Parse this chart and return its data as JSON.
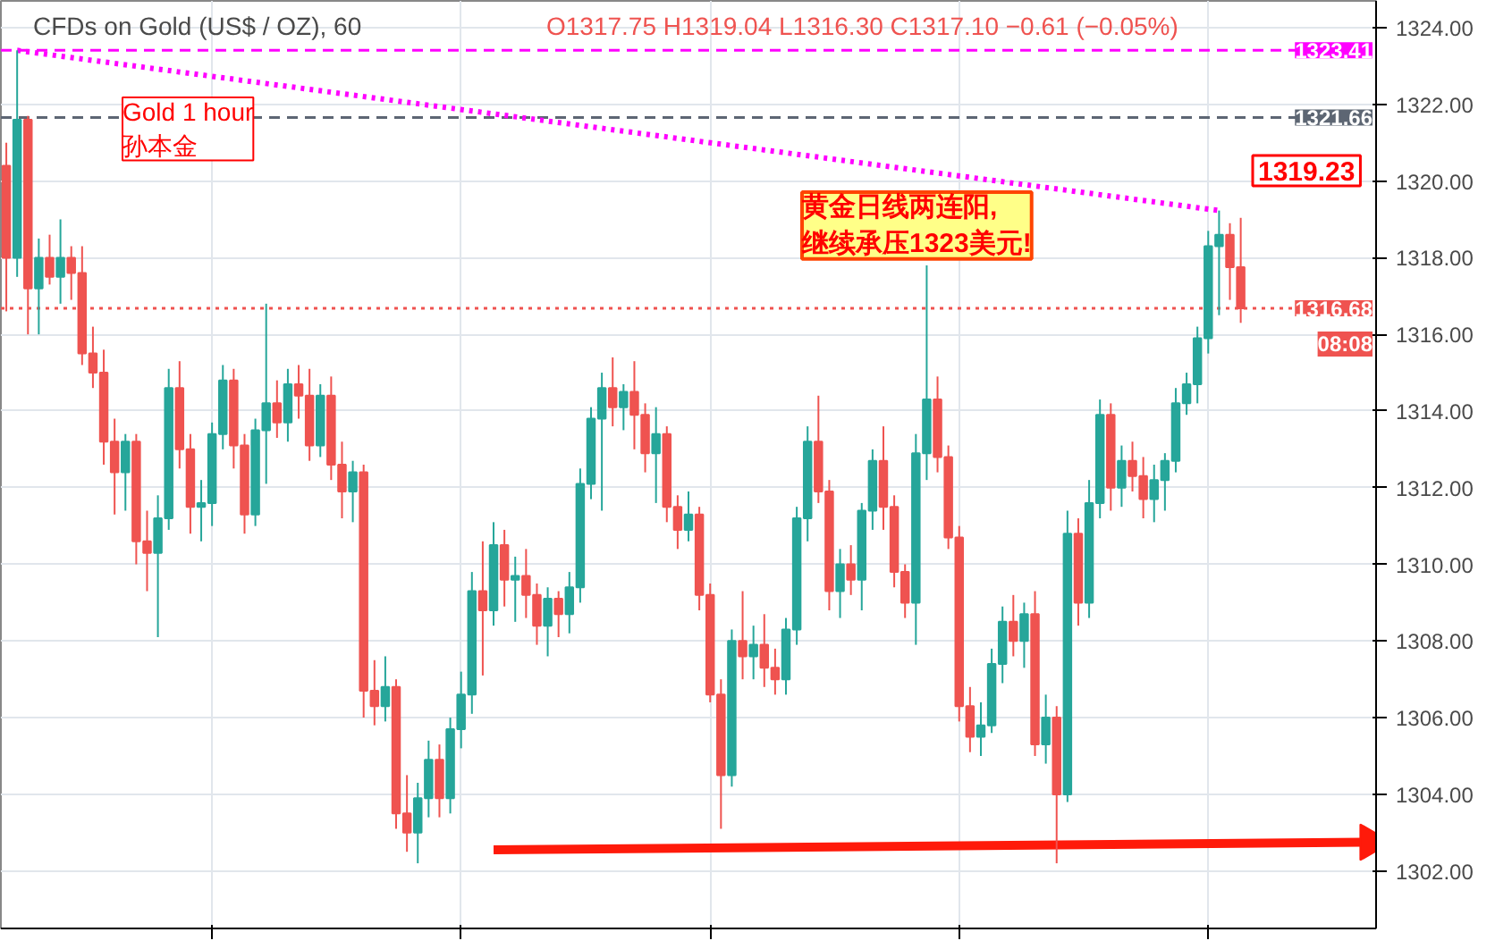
{
  "chart_data": {
    "type": "candlestick",
    "title": "CFDs on Gold (US$ / OZ), 60",
    "annotations": [
      "O1317.75 H1319.04 L1316.30 C1317.10 −0.61 (−0.05%)",
      "Gold 1 hour\n孙本金",
      "黄金日线两连阳,\n继续承压1323美元!",
      "08:08",
      "1319.23"
    ],
    "categories": [
      null,
      null,
      null,
      null,
      null,
      null,
      null,
      null,
      null,
      null,
      null,
      null,
      null,
      null,
      null,
      null,
      null,
      null,
      null,
      null,
      null,
      null,
      null,
      null,
      null,
      null,
      null,
      null,
      null,
      null,
      null,
      null,
      null,
      null,
      null,
      null,
      null,
      null,
      null,
      null,
      null,
      null,
      null,
      null,
      null,
      null,
      null,
      null,
      null,
      null,
      null,
      null,
      null,
      null,
      null,
      null,
      null,
      null,
      null,
      null,
      null,
      null,
      null,
      null,
      null,
      null,
      null,
      null,
      null,
      null,
      null,
      null,
      null,
      null,
      null,
      null,
      null,
      null,
      null,
      null,
      null,
      null,
      null,
      null,
      null,
      null,
      null,
      null,
      null,
      null,
      null,
      null,
      null,
      null,
      null,
      null,
      null,
      null,
      null,
      null,
      null,
      null,
      null,
      null,
      null,
      null,
      null,
      null,
      null,
      null,
      null,
      null,
      null,
      null,
      null,
      null,
      null,
      null,
      null,
      null,
      null,
      null,
      null,
      null,
      null,
      null,
      null
    ],
    "colors": [
      "#ef5350",
      "#26a69a",
      "#ef5350",
      "#26a69a",
      "#ef5350",
      "#26a69a",
      "#ef5350",
      "#ef5350",
      "#ef5350",
      "#ef5350",
      "#ef5350",
      "#26a69a",
      "#ef5350",
      "#ef5350",
      "#26a69a",
      "#26a69a",
      "#ef5350",
      "#ef5350",
      "#26a69a",
      "#26a69a",
      "#26a69a",
      "#ef5350",
      "#ef5350",
      "#26a69a",
      "#26a69a",
      "#ef5350",
      "#26a69a",
      "#ef5350",
      "#ef5350",
      "#26a69a",
      "#ef5350",
      "#ef5350",
      "#26a69a",
      "#ef5350",
      "#ef5350",
      "#26a69a",
      "#ef5350",
      "#ef5350",
      "#26a69a",
      "#26a69a",
      "#ef5350",
      "#26a69a",
      "#26a69a",
      "#26a69a",
      "#ef5350",
      "#26a69a",
      "#ef5350",
      "#26a69a",
      "#ef5350",
      "#ef5350",
      "#26a69a",
      "#ef5350",
      "#26a69a",
      "#26a69a",
      "#26a69a",
      "#26a69a",
      "#ef5350",
      "#26a69a",
      "#ef5350",
      "#ef5350",
      "#26a69a",
      "#ef5350",
      "#ef5350",
      "#26a69a",
      "#ef5350",
      "#ef5350",
      "#ef5350",
      "#26a69a",
      "#ef5350",
      "#26a69a",
      "#ef5350",
      "#ef5350",
      "#26a69a",
      "#26a69a",
      "#26a69a",
      "#ef5350",
      "#ef5350",
      "#26a69a",
      "#ef5350",
      "#26a69a",
      "#26a69a",
      "#ef5350",
      "#ef5350",
      "#ef5350",
      "#26a69a",
      "#26a69a",
      "#ef5350",
      "#ef5350",
      "#ef5350",
      "#ef5350",
      "#26a69a",
      "#26a69a",
      "#26a69a",
      "#ef5350",
      "#26a69a",
      "#ef5350",
      "#26a69a",
      "#ef5350",
      "#26a69a",
      "#ef5350",
      "#26a69a",
      "#26a69a",
      "#ef5350",
      "#26a69a",
      "#ef5350",
      "#ef5350",
      "#26a69a",
      "#26a69a",
      "#26a69a",
      "#26a69a",
      "#26a69a",
      "#26a69a",
      "#26a69a",
      "#ef5350",
      "#ef5350",
      null,
      null,
      null,
      null,
      null,
      null,
      null,
      null,
      null,
      null,
      null,
      null
    ],
    "ohlc": [
      [
        1320.4,
        1321.0,
        1316.6,
        1318.0
      ],
      [
        1318.0,
        1323.41,
        1317.5,
        1321.6
      ],
      [
        1321.6,
        1321.7,
        1316.0,
        1317.2
      ],
      [
        1317.2,
        1318.5,
        1316.0,
        1318.0
      ],
      [
        1318.0,
        1318.6,
        1317.3,
        1317.5
      ],
      [
        1317.5,
        1319.0,
        1316.8,
        1318.0
      ],
      [
        1318.0,
        1318.3,
        1316.9,
        1317.6
      ],
      [
        1317.6,
        1318.3,
        1315.2,
        1315.5
      ],
      [
        1315.5,
        1316.2,
        1314.6,
        1315.0
      ],
      [
        1315.0,
        1315.6,
        1312.6,
        1313.2
      ],
      [
        1313.2,
        1313.8,
        1311.3,
        1312.4
      ],
      [
        1312.4,
        1313.4,
        1311.4,
        1313.2
      ],
      [
        1313.2,
        1313.4,
        1310.0,
        1310.6
      ],
      [
        1310.6,
        1311.4,
        1309.3,
        1310.3
      ],
      [
        1310.3,
        1311.8,
        1308.1,
        1311.2
      ],
      [
        1311.2,
        1315.1,
        1310.9,
        1314.6
      ],
      [
        1314.6,
        1315.3,
        1312.5,
        1313.0
      ],
      [
        1313.0,
        1313.4,
        1310.8,
        1311.5
      ],
      [
        1311.5,
        1312.2,
        1310.6,
        1311.6
      ],
      [
        1311.6,
        1313.7,
        1311.0,
        1313.4
      ],
      [
        1313.4,
        1315.2,
        1313.0,
        1314.8
      ],
      [
        1314.8,
        1315.1,
        1312.5,
        1313.1
      ],
      [
        1313.1,
        1313.4,
        1310.8,
        1311.3
      ],
      [
        1311.3,
        1313.8,
        1311.0,
        1313.5
      ],
      [
        1313.5,
        1316.8,
        1312.1,
        1314.2
      ],
      [
        1314.2,
        1314.8,
        1313.3,
        1313.7
      ],
      [
        1313.7,
        1315.1,
        1313.2,
        1314.7
      ],
      [
        1314.7,
        1315.2,
        1313.8,
        1314.4
      ],
      [
        1314.4,
        1315.1,
        1312.7,
        1313.1
      ],
      [
        1313.1,
        1314.7,
        1312.8,
        1314.4
      ],
      [
        1314.4,
        1314.9,
        1312.2,
        1312.6
      ],
      [
        1312.6,
        1313.2,
        1311.2,
        1311.9
      ],
      [
        1311.9,
        1312.7,
        1311.1,
        1312.4
      ],
      [
        1312.4,
        1312.6,
        1306.0,
        1306.7
      ],
      [
        1306.7,
        1307.5,
        1305.8,
        1306.3
      ],
      [
        1306.3,
        1307.6,
        1305.9,
        1306.8
      ],
      [
        1306.8,
        1307.0,
        1303.1,
        1303.5
      ],
      [
        1303.5,
        1304.5,
        1302.5,
        1303.0
      ],
      [
        1303.0,
        1304.3,
        1302.2,
        1303.9
      ],
      [
        1303.9,
        1305.4,
        1303.4,
        1304.9
      ],
      [
        1304.9,
        1305.3,
        1303.4,
        1303.9
      ],
      [
        1303.9,
        1306.0,
        1303.5,
        1305.7
      ],
      [
        1305.7,
        1307.2,
        1305.2,
        1306.6
      ],
      [
        1306.6,
        1309.8,
        1306.1,
        1309.3
      ],
      [
        1309.3,
        1310.6,
        1307.1,
        1308.8
      ],
      [
        1308.8,
        1311.1,
        1308.4,
        1310.5
      ],
      [
        1310.5,
        1310.9,
        1308.9,
        1309.6
      ],
      [
        1309.6,
        1310.2,
        1308.5,
        1309.7
      ],
      [
        1309.7,
        1310.4,
        1308.6,
        1309.2
      ],
      [
        1309.2,
        1309.5,
        1307.9,
        1308.4
      ],
      [
        1308.4,
        1309.4,
        1307.6,
        1309.1
      ],
      [
        1309.1,
        1309.3,
        1308.1,
        1308.7
      ],
      [
        1308.7,
        1309.8,
        1308.2,
        1309.4
      ],
      [
        1309.4,
        1312.5,
        1309.0,
        1312.1
      ],
      [
        1312.1,
        1314.1,
        1311.7,
        1313.8
      ],
      [
        1313.8,
        1315.0,
        1311.4,
        1314.6
      ],
      [
        1314.6,
        1315.4,
        1313.6,
        1314.1
      ],
      [
        1314.1,
        1314.7,
        1313.5,
        1314.5
      ],
      [
        1314.5,
        1315.3,
        1313.0,
        1313.9
      ],
      [
        1313.9,
        1314.2,
        1312.4,
        1312.9
      ],
      [
        1312.9,
        1314.1,
        1311.6,
        1313.4
      ],
      [
        1313.4,
        1313.6,
        1311.1,
        1311.5
      ],
      [
        1311.5,
        1311.8,
        1310.4,
        1310.9
      ],
      [
        1310.9,
        1311.9,
        1310.6,
        1311.3
      ],
      [
        1311.3,
        1311.5,
        1308.8,
        1309.2
      ],
      [
        1309.2,
        1309.5,
        1306.4,
        1306.6
      ],
      [
        1306.6,
        1307.0,
        1303.1,
        1304.5
      ],
      [
        1304.5,
        1308.3,
        1304.2,
        1308.0
      ],
      [
        1308.0,
        1309.3,
        1307.0,
        1307.6
      ],
      [
        1307.6,
        1308.4,
        1307.0,
        1307.9
      ],
      [
        1307.9,
        1308.7,
        1306.8,
        1307.3
      ],
      [
        1307.3,
        1307.8,
        1306.6,
        1307.0
      ],
      [
        1307.0,
        1308.6,
        1306.6,
        1308.3
      ],
      [
        1308.3,
        1311.5,
        1307.9,
        1311.2
      ],
      [
        1311.2,
        1313.6,
        1310.6,
        1313.2
      ],
      [
        1313.2,
        1314.4,
        1311.6,
        1311.9
      ],
      [
        1311.9,
        1312.2,
        1308.8,
        1309.3
      ],
      [
        1309.3,
        1310.4,
        1308.6,
        1310.0
      ],
      [
        1310.0,
        1310.5,
        1309.2,
        1309.6
      ],
      [
        1309.6,
        1311.6,
        1308.8,
        1311.4
      ],
      [
        1311.4,
        1313.0,
        1310.9,
        1312.7
      ],
      [
        1312.7,
        1313.6,
        1310.9,
        1311.5
      ],
      [
        1311.5,
        1311.8,
        1309.4,
        1309.8
      ],
      [
        1309.8,
        1310.0,
        1308.6,
        1309.0
      ],
      [
        1309.0,
        1313.4,
        1307.9,
        1312.9
      ],
      [
        1312.9,
        1317.8,
        1312.2,
        1314.3
      ],
      [
        1314.3,
        1314.9,
        1312.4,
        1312.8
      ],
      [
        1312.8,
        1313.1,
        1310.4,
        1310.7
      ],
      [
        1310.7,
        1311.0,
        1305.9,
        1306.3
      ],
      [
        1306.3,
        1306.8,
        1305.1,
        1305.5
      ],
      [
        1305.5,
        1306.4,
        1305.0,
        1305.8
      ],
      [
        1305.8,
        1307.8,
        1305.6,
        1307.4
      ],
      [
        1307.4,
        1308.9,
        1306.9,
        1308.5
      ],
      [
        1308.5,
        1309.2,
        1307.6,
        1308.0
      ],
      [
        1308.0,
        1309.0,
        1307.3,
        1308.7
      ],
      [
        1308.7,
        1309.3,
        1305.0,
        1305.3
      ],
      [
        1305.3,
        1306.6,
        1304.8,
        1306.0
      ],
      [
        1306.0,
        1306.3,
        1302.2,
        1304.0
      ],
      [
        1304.0,
        1311.4,
        1303.8,
        1310.8
      ],
      [
        1310.8,
        1311.2,
        1308.4,
        1309.0
      ],
      [
        1309.0,
        1312.2,
        1308.6,
        1311.6
      ],
      [
        1311.6,
        1314.3,
        1311.2,
        1313.9
      ],
      [
        1313.9,
        1314.2,
        1311.4,
        1312.0
      ],
      [
        1312.0,
        1313.1,
        1311.5,
        1312.7
      ],
      [
        1312.7,
        1313.2,
        1311.9,
        1312.3
      ],
      [
        1312.3,
        1312.8,
        1311.2,
        1311.7
      ],
      [
        1311.7,
        1312.6,
        1311.1,
        1312.2
      ],
      [
        1312.2,
        1312.9,
        1311.4,
        1312.7
      ],
      [
        1312.7,
        1314.6,
        1312.4,
        1314.2
      ],
      [
        1314.2,
        1315.0,
        1313.9,
        1314.7
      ],
      [
        1314.7,
        1316.2,
        1314.2,
        1315.9
      ],
      [
        1315.9,
        1318.7,
        1315.5,
        1318.3
      ],
      [
        1318.3,
        1319.23,
        1316.5,
        1318.6
      ],
      [
        1318.6,
        1318.9,
        1316.9,
        1317.75
      ],
      [
        1317.75,
        1319.04,
        1316.3,
        1316.68
      ],
      null,
      null,
      null,
      null,
      null,
      null,
      null,
      null,
      null,
      null,
      null,
      null
    ],
    "series": [
      {
        "type": "line",
        "color": "#ff00ff",
        "line_style": "dotted",
        "marker": "none",
        "values": [
          null,
          1323.41,
          null,
          null,
          null,
          null,
          null,
          null,
          null,
          null,
          null,
          null,
          null,
          null,
          null,
          null,
          null,
          null,
          null,
          null,
          null,
          null,
          null,
          null,
          null,
          null,
          null,
          null,
          null,
          null,
          null,
          null,
          null,
          null,
          null,
          null,
          null,
          null,
          null,
          null,
          null,
          null,
          null,
          null,
          null,
          null,
          null,
          null,
          null,
          null,
          null,
          null,
          null,
          null,
          null,
          null,
          null,
          null,
          null,
          null,
          null,
          null,
          null,
          null,
          null,
          null,
          null,
          null,
          null,
          null,
          null,
          null,
          null,
          null,
          null,
          null,
          null,
          null,
          null,
          null,
          null,
          null,
          null,
          null,
          null,
          null,
          null,
          null,
          null,
          null,
          null,
          null,
          null,
          null,
          null,
          null,
          null,
          null,
          null,
          null,
          null,
          null,
          null,
          null,
          null,
          null,
          null,
          null,
          null,
          null,
          null,
          null,
          1319.23,
          null,
          null,
          null,
          null,
          null,
          null,
          null,
          null,
          null,
          null,
          null,
          null,
          null,
          null
        ]
      },
      {
        "type": "line",
        "color": "#ff1a0a",
        "line_style": "solid",
        "marker": "triangle",
        "values": [
          null,
          null,
          null,
          null,
          null,
          null,
          null,
          null,
          null,
          null,
          null,
          null,
          null,
          null,
          null,
          null,
          null,
          null,
          null,
          null,
          null,
          null,
          null,
          null,
          null,
          null,
          null,
          null,
          null,
          null,
          null,
          null,
          null,
          null,
          null,
          null,
          null,
          null,
          null,
          null,
          null,
          null,
          null,
          null,
          null,
          1302.55,
          null,
          null,
          null,
          null,
          null,
          null,
          null,
          null,
          null,
          null,
          null,
          null,
          null,
          null,
          null,
          null,
          null,
          null,
          null,
          null,
          null,
          null,
          null,
          null,
          null,
          null,
          null,
          null,
          null,
          null,
          null,
          null,
          null,
          null,
          null,
          null,
          null,
          null,
          null,
          null,
          null,
          null,
          null,
          null,
          null,
          null,
          null,
          null,
          null,
          null,
          null,
          null,
          null,
          null,
          null,
          null,
          null,
          null,
          null,
          null,
          null,
          null,
          null,
          null,
          null,
          null,
          null,
          null,
          null,
          null,
          null,
          null,
          null,
          null,
          null,
          null,
          null,
          null,
          null,
          null,
          1302.75
        ]
      }
    ],
    "ylim": [
      1300.5,
      1324.7
    ],
    "yticks": [
      {
        "value": 1302,
        "label": "1302.00"
      },
      {
        "value": 1304,
        "label": "1304.00"
      },
      {
        "value": 1306,
        "label": "1306.00"
      },
      {
        "value": 1308,
        "label": "1308.00"
      },
      {
        "value": 1310,
        "label": "1310.00"
      },
      {
        "value": 1312,
        "label": "1312.00"
      },
      {
        "value": 1314,
        "label": "1314.00"
      },
      {
        "value": 1316,
        "label": "1316.00"
      },
      {
        "value": 1318,
        "label": "1318.00"
      },
      {
        "value": 1320,
        "label": "1320.00"
      },
      {
        "value": 1322,
        "label": "1322.00"
      },
      {
        "value": 1324,
        "label": "1324.00"
      }
    ],
    "ref_lines": [
      {
        "axis": "y",
        "value": 1323.41,
        "label": "1323.41",
        "color": "#ff00ff",
        "line_style": "dashed"
      },
      {
        "axis": "y",
        "value": 1321.66,
        "label": "1321.66",
        "color": "#5d6673",
        "line_style": "dashed"
      },
      {
        "axis": "y",
        "value": 1316.68,
        "label": "1316.68",
        "color": "#ef5350",
        "line_style": "dotted"
      }
    ],
    "grid": true,
    "tick_labels": "y"
  }
}
